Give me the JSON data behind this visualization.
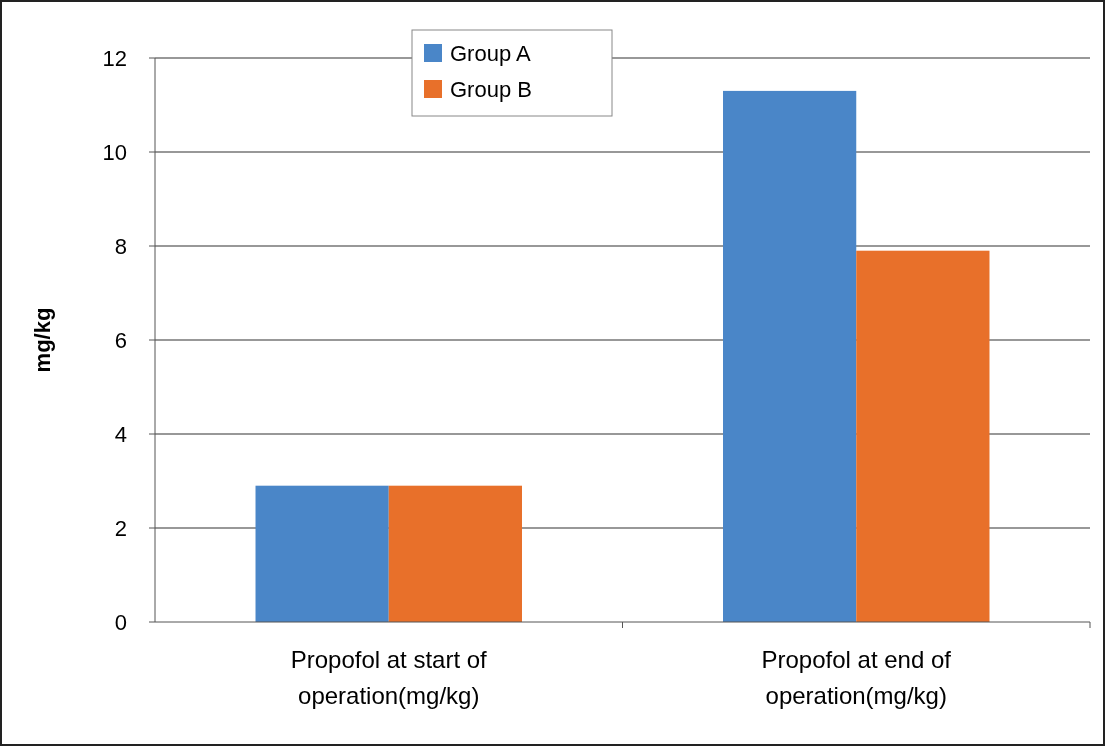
{
  "chart_data": {
    "type": "bar",
    "ylabel": "mg/kg",
    "categories": [
      "Propofol at start of operation(mg/kg)",
      "Propofol at end of operation(mg/kg)"
    ],
    "series": [
      {
        "name": "Group A",
        "color": "#4a86c8",
        "values": [
          2.9,
          11.3
        ]
      },
      {
        "name": "Group B",
        "color": "#e8702a",
        "values": [
          2.9,
          7.9
        ]
      }
    ],
    "ylim": [
      0,
      12
    ],
    "yticks": [
      0,
      2,
      4,
      6,
      8,
      10,
      12
    ],
    "grid": "y",
    "legend": "top"
  }
}
